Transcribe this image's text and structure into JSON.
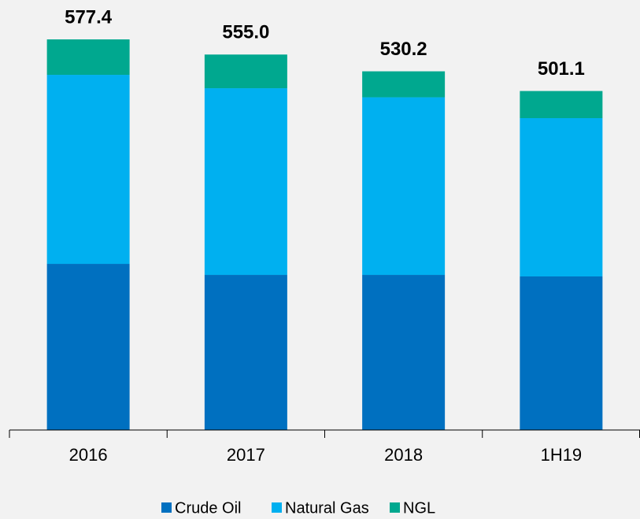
{
  "chart_data": {
    "type": "stacked_bar",
    "categories": [
      "2016",
      "2017",
      "2018",
      "1H19"
    ],
    "series": [
      {
        "name": "Crude Oil",
        "color": "#0070c0",
        "values": [
          245.6,
          229.3,
          229.3,
          227.0
        ]
      },
      {
        "name": "Natural Gas",
        "color": "#00b0f0",
        "values": [
          279.4,
          275.9,
          262.5,
          234.0
        ]
      },
      {
        "name": "NGL",
        "color": "#00a88f",
        "values": [
          52.4,
          49.8,
          38.4,
          40.1
        ]
      }
    ],
    "totals": [
      577.4,
      555.0,
      530.2,
      501.1
    ],
    "total_labels": [
      "577.4",
      "555.0",
      "530.2",
      "501.1"
    ],
    "ylim": [
      0,
      600
    ],
    "legend": "bottom"
  }
}
